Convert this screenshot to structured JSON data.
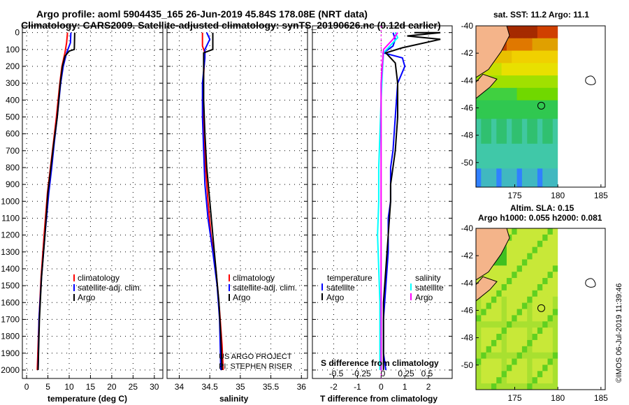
{
  "title": {
    "line1": "Argo profile: aoml 5904435_165 26-Jun-2019 45.84S 178.08E (NRT data)",
    "line2": "Climatology: CARS2009. Satellite-adjusted climatology: synTS_20190626.nc (0.12d earlier)"
  },
  "credits": {
    "project": "US ARGO PROJECT",
    "pi": "PI: STEPHEN RISER",
    "imos": "©IMOS 06-Jul-2019 11:39:46"
  },
  "depth_ticks": [
    "0",
    "100",
    "200",
    "300",
    "400",
    "500",
    "600",
    "700",
    "800",
    "900",
    "1000",
    "1100",
    "1200",
    "1300",
    "1400",
    "1500",
    "1600",
    "1700",
    "1800",
    "1900",
    "2000"
  ],
  "colors": {
    "climatology": "#ff0000",
    "satellite": "#0000ff",
    "argo": "#000000",
    "cyan": "#00ffff",
    "magenta": "#ff00ff"
  },
  "chart_data": [
    {
      "type": "line",
      "xlabel": "temperature (deg C)",
      "ylabel": "depth",
      "xlim": [
        -1,
        32
      ],
      "ylim": [
        2050,
        -40
      ],
      "x_ticks": [
        "0",
        "5",
        "10",
        "15",
        "20",
        "25",
        "30"
      ],
      "x_tick_values": [
        0,
        5,
        10,
        15,
        20,
        25,
        30
      ],
      "legend": [
        "climatology",
        "satellite-adj. clim.",
        "Argo"
      ],
      "series": [
        {
          "name": "climatology",
          "color": "#ff0000",
          "points": [
            [
              9.6,
              0
            ],
            [
              9.4,
              60
            ],
            [
              9.0,
              120
            ],
            [
              8.3,
              200
            ],
            [
              7.8,
              300
            ],
            [
              7.0,
              500
            ],
            [
              6.3,
              650
            ],
            [
              5.6,
              800
            ],
            [
              4.9,
              950
            ],
            [
              4.1,
              1200
            ],
            [
              3.4,
              1450
            ],
            [
              2.9,
              1700
            ],
            [
              2.5,
              2000
            ]
          ]
        },
        {
          "name": "satellite-adj. clim.",
          "color": "#0000ff",
          "points": [
            [
              10.4,
              0
            ],
            [
              10.3,
              60
            ],
            [
              9.4,
              120
            ],
            [
              8.6,
              200
            ],
            [
              8.0,
              300
            ],
            [
              7.2,
              500
            ],
            [
              6.5,
              650
            ],
            [
              5.9,
              800
            ],
            [
              5.2,
              950
            ],
            [
              4.3,
              1200
            ],
            [
              3.5,
              1450
            ],
            [
              2.9,
              1700
            ],
            [
              2.7,
              2000
            ]
          ]
        },
        {
          "name": "Argo",
          "color": "#000000",
          "points": [
            [
              11.3,
              0
            ],
            [
              11.2,
              100
            ],
            [
              10.0,
              110
            ],
            [
              9.0,
              140
            ],
            [
              8.4,
              200
            ],
            [
              7.9,
              300
            ],
            [
              7.2,
              500
            ],
            [
              6.4,
              650
            ],
            [
              5.7,
              800
            ],
            [
              5.0,
              950
            ],
            [
              4.3,
              1200
            ],
            [
              3.5,
              1450
            ],
            [
              3.0,
              1700
            ],
            [
              2.7,
              2000
            ]
          ]
        }
      ]
    },
    {
      "type": "line",
      "xlabel": "salinity",
      "xlim": [
        33.8,
        36.1
      ],
      "ylim": [
        2050,
        -40
      ],
      "x_ticks": [
        "34",
        "34.5",
        "35",
        "35.5",
        "36"
      ],
      "x_tick_values": [
        34,
        34.5,
        35,
        35.5,
        36
      ],
      "legend": [
        "climatology",
        "satellite-adj. clim.",
        "Argo"
      ],
      "series": [
        {
          "name": "climatology",
          "color": "#ff0000",
          "points": [
            [
              34.38,
              0
            ],
            [
              34.38,
              80
            ],
            [
              34.42,
              120
            ],
            [
              34.4,
              250
            ],
            [
              34.38,
              400
            ],
            [
              34.4,
              600
            ],
            [
              34.43,
              800
            ],
            [
              34.47,
              1000
            ],
            [
              34.52,
              1200
            ],
            [
              34.6,
              1400
            ],
            [
              34.66,
              1650
            ],
            [
              34.7,
              1850
            ],
            [
              34.72,
              2000
            ]
          ]
        },
        {
          "name": "satellite-adj. clim.",
          "color": "#0000ff",
          "points": [
            [
              34.45,
              0
            ],
            [
              34.5,
              40
            ],
            [
              34.42,
              100
            ],
            [
              34.42,
              150
            ],
            [
              34.38,
              300
            ],
            [
              34.38,
              500
            ],
            [
              34.4,
              700
            ],
            [
              34.42,
              900
            ],
            [
              34.47,
              1100
            ],
            [
              34.55,
              1300
            ],
            [
              34.62,
              1500
            ],
            [
              34.66,
              1700
            ],
            [
              34.68,
              2000
            ]
          ]
        },
        {
          "name": "Argo",
          "color": "#000000",
          "points": [
            [
              34.55,
              0
            ],
            [
              34.55,
              100
            ],
            [
              34.4,
              120
            ],
            [
              34.4,
              250
            ],
            [
              34.4,
              400
            ],
            [
              34.42,
              600
            ],
            [
              34.45,
              800
            ],
            [
              34.5,
              1000
            ],
            [
              34.55,
              1200
            ],
            [
              34.6,
              1400
            ],
            [
              34.65,
              1600
            ],
            [
              34.68,
              1800
            ],
            [
              34.7,
              2000
            ]
          ]
        }
      ]
    },
    {
      "type": "line",
      "xlabel": "T difference from climatology",
      "inner_xlabel": "S difference from climatology",
      "xlim": [
        -2.9,
        3.0
      ],
      "ylim": [
        2050,
        -40
      ],
      "x_ticks": [
        "-2",
        "-1",
        "0",
        "1",
        "2"
      ],
      "x_tick_values": [
        -2,
        -1,
        0,
        1,
        2
      ],
      "s_ticks": [
        "-0.5",
        "-0.25",
        "0",
        "0.25",
        "0.5"
      ],
      "legend_temperature": {
        "header": "temperature",
        "items": [
          "satellite",
          "Argo"
        ]
      },
      "legend_salinity": {
        "header": "salinity",
        "items": [
          "satellite",
          "Argo"
        ]
      },
      "series": [
        {
          "name": "T satellite",
          "color": "#0000ff",
          "points": [
            [
              0.5,
              0
            ],
            [
              0.6,
              40
            ],
            [
              0.5,
              80
            ],
            [
              0.1,
              120
            ],
            [
              0.9,
              150
            ],
            [
              1.0,
              200
            ],
            [
              0.7,
              300
            ],
            [
              0.6,
              500
            ],
            [
              0.5,
              700
            ],
            [
              0.4,
              800
            ],
            [
              0.4,
              900
            ],
            [
              0.4,
              1000
            ],
            [
              0.3,
              1100
            ],
            [
              0.3,
              1300
            ],
            [
              0.2,
              1500
            ],
            [
              0.1,
              1700
            ],
            [
              0.1,
              1900
            ],
            [
              0.2,
              2000
            ]
          ]
        },
        {
          "name": "T Argo",
          "color": "#000000",
          "points": [
            [
              1.4,
              0
            ],
            [
              2.5,
              0
            ],
            [
              1.1,
              20
            ],
            [
              2.5,
              40
            ],
            [
              0.9,
              90
            ],
            [
              0.2,
              120
            ],
            [
              0.6,
              180
            ],
            [
              0.7,
              300
            ],
            [
              0.7,
              500
            ],
            [
              0.6,
              700
            ],
            [
              0.4,
              900
            ],
            [
              0.4,
              1000
            ],
            [
              0.3,
              1200
            ],
            [
              0.2,
              1400
            ],
            [
              0.1,
              1600
            ],
            [
              0.1,
              1800
            ],
            [
              0.1,
              2000
            ]
          ]
        },
        {
          "name": "S satellite",
          "color": "#00ffff",
          "points": [
            [
              0.6,
              0
            ],
            [
              0.7,
              30
            ],
            [
              0.1,
              120
            ],
            [
              0.05,
              250
            ],
            [
              0.0,
              400
            ],
            [
              -0.05,
              600
            ],
            [
              -0.1,
              800
            ],
            [
              -0.1,
              1000
            ],
            [
              -0.15,
              1200
            ],
            [
              -0.1,
              1400
            ],
            [
              -0.05,
              1600
            ],
            [
              -0.05,
              1800
            ],
            [
              -0.05,
              2000
            ]
          ]
        },
        {
          "name": "S Argo",
          "color": "#ff00ff",
          "points": [
            [
              0.7,
              0
            ],
            [
              0.5,
              40
            ],
            [
              0.1,
              100
            ],
            [
              0.0,
              300
            ],
            [
              0.0,
              500
            ],
            [
              0.0,
              800
            ],
            [
              0.0,
              1000
            ],
            [
              0.0,
              1400
            ],
            [
              0.0,
              1800
            ],
            [
              0.0,
              2000
            ]
          ]
        }
      ]
    },
    {
      "type": "heatmap",
      "title": "sat. SST: 11.2 Argo: 11.1",
      "x_ticks": [
        "175",
        "180",
        "185"
      ],
      "y_ticks": [
        "-40",
        "-42",
        "-44",
        "-46",
        "-48",
        "-50"
      ],
      "xlim": [
        170.5,
        185.5
      ],
      "ylim": [
        -51.8,
        -40
      ]
    },
    {
      "type": "heatmap",
      "title_line1": "Altim. SLA: 0.15",
      "title_line2": "Argo h1000: 0.055 h2000: 0.081",
      "x_ticks": [
        "175",
        "180",
        "185"
      ],
      "y_ticks": [
        "-40",
        "-42",
        "-44",
        "-46",
        "-48",
        "-50"
      ],
      "xlim": [
        170.5,
        185.5
      ],
      "ylim": [
        -51.8,
        -40
      ]
    }
  ]
}
